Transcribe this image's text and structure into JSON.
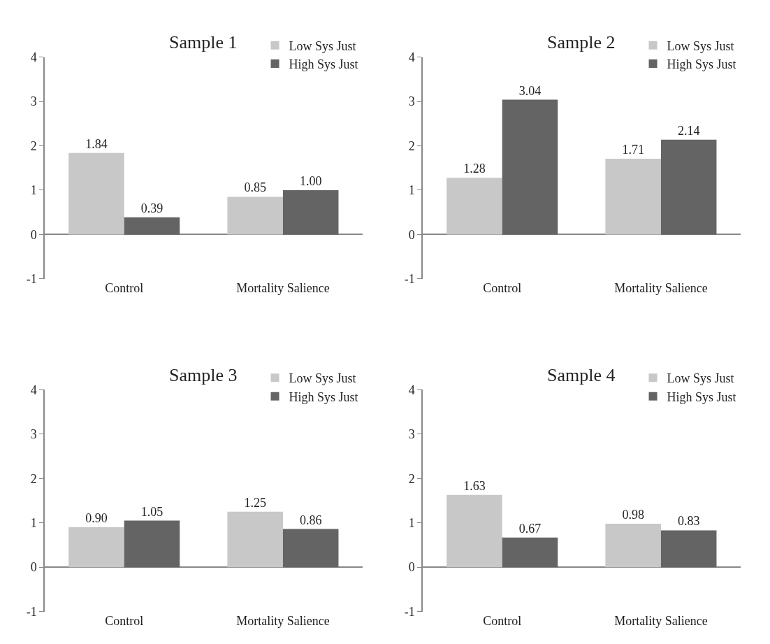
{
  "chart_data": [
    {
      "type": "bar",
      "title": "Sample 1",
      "categories": [
        "Control",
        "Mortality Salience"
      ],
      "ylim": [
        -1,
        4
      ],
      "yticks": [
        -1,
        0,
        1,
        2,
        3,
        4
      ],
      "legend": "top right",
      "series": [
        {
          "name": "Low Sys Just",
          "color": "#c8c8c8",
          "values": [
            1.84,
            0.85
          ],
          "value_labels": [
            "1.84",
            "0.85"
          ]
        },
        {
          "name": "High Sys Just",
          "color": "#646464",
          "values": [
            0.39,
            1.0
          ],
          "value_labels": [
            "0.39",
            "1.00"
          ]
        }
      ]
    },
    {
      "type": "bar",
      "title": "Sample 2",
      "categories": [
        "Control",
        "Mortality Salience"
      ],
      "ylim": [
        -1,
        4
      ],
      "yticks": [
        -1,
        0,
        1,
        2,
        3,
        4
      ],
      "legend": "top right",
      "series": [
        {
          "name": "Low Sys Just",
          "color": "#c8c8c8",
          "values": [
            1.28,
            1.71
          ],
          "value_labels": [
            "1.28",
            "1.71"
          ]
        },
        {
          "name": "High Sys Just",
          "color": "#646464",
          "values": [
            3.04,
            2.14
          ],
          "value_labels": [
            "3.04",
            "2.14"
          ]
        }
      ]
    },
    {
      "type": "bar",
      "title": "Sample 3",
      "categories": [
        "Control",
        "Mortality Salience"
      ],
      "ylim": [
        -1,
        4
      ],
      "yticks": [
        -1,
        0,
        1,
        2,
        3,
        4
      ],
      "legend": "top right",
      "series": [
        {
          "name": "Low Sys Just",
          "color": "#c8c8c8",
          "values": [
            0.9,
            1.25
          ],
          "value_labels": [
            "0.90",
            "1.25"
          ]
        },
        {
          "name": "High Sys Just",
          "color": "#646464",
          "values": [
            1.05,
            0.86
          ],
          "value_labels": [
            "1.05",
            "0.86"
          ]
        }
      ]
    },
    {
      "type": "bar",
      "title": "Sample 4",
      "categories": [
        "Control",
        "Mortality Salience"
      ],
      "ylim": [
        -1,
        4
      ],
      "yticks": [
        -1,
        0,
        1,
        2,
        3,
        4
      ],
      "legend": "top right",
      "series": [
        {
          "name": "Low Sys Just",
          "color": "#c8c8c8",
          "values": [
            1.63,
            0.98
          ],
          "value_labels": [
            "1.63",
            "0.98"
          ]
        },
        {
          "name": "High Sys Just",
          "color": "#646464",
          "values": [
            0.67,
            0.83
          ],
          "value_labels": [
            "0.67",
            "0.83"
          ]
        }
      ]
    }
  ]
}
